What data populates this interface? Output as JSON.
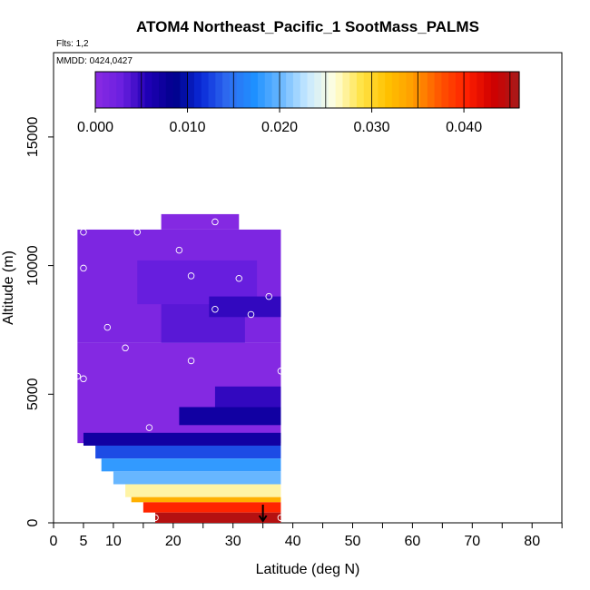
{
  "chart_data": {
    "type": "heatmap",
    "title": "ATOM4 Northeast_Pacific_1 SootMass_PALMS",
    "subtitle_flights": "Flts: 1,2",
    "subtitle_dates": "MMDD: 0424,0427",
    "xlabel": "Latitude (deg N)",
    "ylabel": "Altitude (m)",
    "xlim": [
      0,
      85
    ],
    "ylim": [
      0,
      18000
    ],
    "x_ticks": [
      0,
      5,
      10,
      20,
      30,
      40,
      50,
      60,
      70,
      80
    ],
    "y_ticks": [
      0,
      5000,
      10000,
      15000
    ],
    "colorbar": {
      "range": [
        0,
        0.046
      ],
      "tick_values": [
        0.0,
        0.01,
        0.02,
        0.03,
        0.04
      ],
      "tick_labels": [
        "0.000",
        "0.010",
        "0.020",
        "0.030",
        "0.040"
      ],
      "colors": [
        "#8a2be2",
        "#6a1fe0",
        "#1e00b4",
        "#00008b",
        "#0a2ad8",
        "#2f6cf0",
        "#1e90ff",
        "#6ab8ff",
        "#c6e8ff",
        "#ffffe0",
        "#ffe44a",
        "#ffc200",
        "#ff9d00",
        "#ff5500",
        "#ff2000",
        "#d00000",
        "#a61a1a"
      ]
    },
    "cells": [
      {
        "lat": [
          4,
          38
        ],
        "alt": [
          3100,
          7000
        ],
        "value": 0.0005
      },
      {
        "lat": [
          4,
          38
        ],
        "alt": [
          7000,
          11400
        ],
        "value": 0.0012
      },
      {
        "lat": [
          18,
          31
        ],
        "alt": [
          11400,
          12000
        ],
        "value": 0.0005
      },
      {
        "lat": [
          14,
          34
        ],
        "alt": [
          8500,
          10200
        ],
        "value": 0.003
      },
      {
        "lat": [
          18,
          32
        ],
        "alt": [
          7000,
          8500
        ],
        "value": 0.0035
      },
      {
        "lat": [
          26,
          38
        ],
        "alt": [
          8000,
          8800
        ],
        "value": 0.005
      },
      {
        "lat": [
          27,
          38
        ],
        "alt": [
          4500,
          5300
        ],
        "value": 0.005
      },
      {
        "lat": [
          21,
          38
        ],
        "alt": [
          3800,
          4500
        ],
        "value": 0.007
      },
      {
        "lat": [
          5,
          38
        ],
        "alt": [
          3000,
          3500
        ],
        "value": 0.007
      },
      {
        "lat": [
          7,
          38
        ],
        "alt": [
          2500,
          3000
        ],
        "value": 0.013
      },
      {
        "lat": [
          8,
          38
        ],
        "alt": [
          2000,
          2500
        ],
        "value": 0.018
      },
      {
        "lat": [
          10,
          38
        ],
        "alt": [
          1500,
          2000
        ],
        "value": 0.02
      },
      {
        "lat": [
          12,
          38
        ],
        "alt": [
          1000,
          1500
        ],
        "value": 0.027
      },
      {
        "lat": [
          13,
          38
        ],
        "alt": [
          800,
          1000
        ],
        "value": 0.033
      },
      {
        "lat": [
          15,
          38
        ],
        "alt": [
          400,
          800
        ],
        "value": 0.04
      },
      {
        "lat": [
          17,
          38
        ],
        "alt": [
          0,
          400
        ],
        "value": 0.045
      }
    ],
    "sample_points": [
      {
        "lat": 5,
        "alt": 11300
      },
      {
        "lat": 14,
        "alt": 11300
      },
      {
        "lat": 27,
        "alt": 11700
      },
      {
        "lat": 21,
        "alt": 10600
      },
      {
        "lat": 5,
        "alt": 9900
      },
      {
        "lat": 23,
        "alt": 9600
      },
      {
        "lat": 31,
        "alt": 9500
      },
      {
        "lat": 36,
        "alt": 8800
      },
      {
        "lat": 27,
        "alt": 8300
      },
      {
        "lat": 33,
        "alt": 8100
      },
      {
        "lat": 9,
        "alt": 7600
      },
      {
        "lat": 12,
        "alt": 6800
      },
      {
        "lat": 23,
        "alt": 6300
      },
      {
        "lat": 4,
        "alt": 5700
      },
      {
        "lat": 5,
        "alt": 5600
      },
      {
        "lat": 38,
        "alt": 5900
      },
      {
        "lat": 16,
        "alt": 3700
      },
      {
        "lat": 3,
        "alt": 3200
      },
      {
        "lat": 17,
        "alt": 200
      },
      {
        "lat": 38,
        "alt": 200
      }
    ],
    "arrow_marker": {
      "lat": 35,
      "alt": 0
    }
  }
}
